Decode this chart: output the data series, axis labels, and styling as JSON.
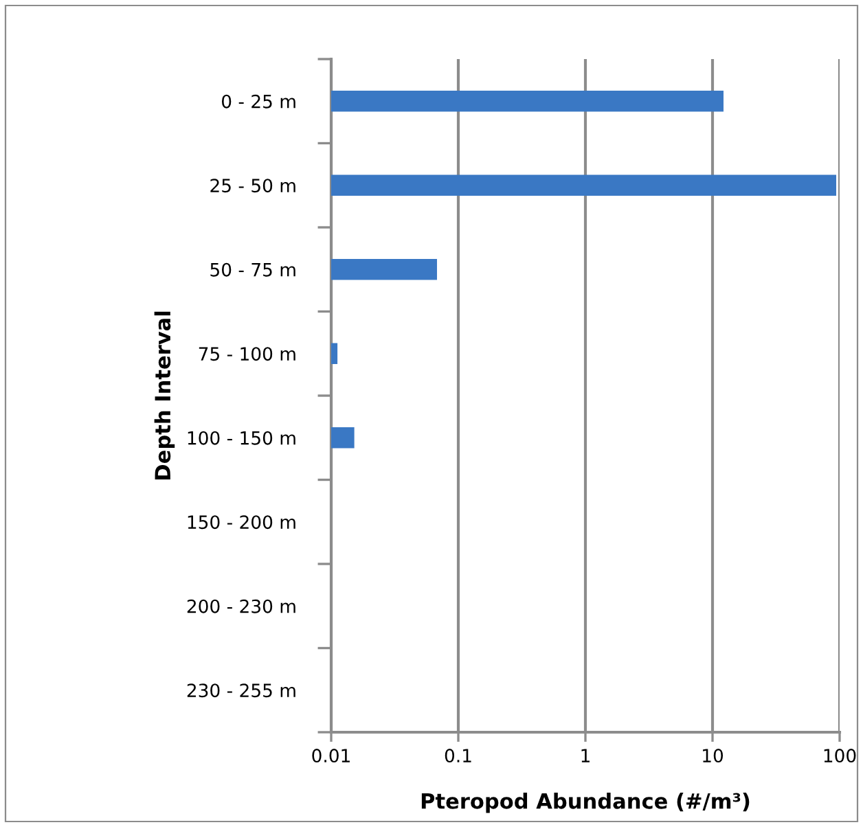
{
  "chart_data": {
    "type": "bar",
    "orientation": "horizontal",
    "xlabel": "Pteropod Abundance (#/m³)",
    "ylabel": "Depth Interval",
    "categories": [
      "0 - 25 m",
      "25 - 50 m",
      "50 - 75 m",
      "75 - 100 m",
      "100 - 150 m",
      "150 - 200 m",
      "200 - 230 m",
      "230 - 255 m"
    ],
    "values": [
      12.2,
      94,
      0.068,
      0.0112,
      0.0152,
      null,
      null,
      null
    ],
    "color": "#3a78c4",
    "log": "x",
    "xlim": [
      0.01,
      100
    ],
    "xticks": [
      0.01,
      0.1,
      1,
      10,
      100
    ],
    "grid": "x"
  }
}
